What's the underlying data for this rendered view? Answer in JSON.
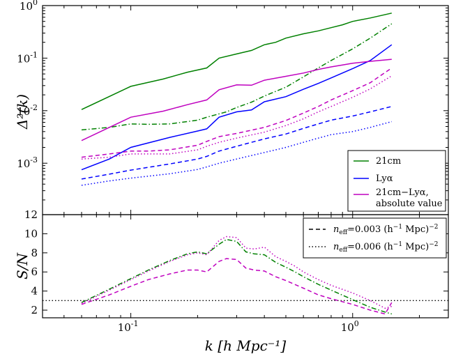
{
  "chart_data": [
    {
      "type": "line",
      "panel": "top",
      "xscale": "log",
      "yscale": "log",
      "xlim": [
        0.04,
        2.7
      ],
      "ylim": [
        0.000105,
        1.0
      ],
      "ylabel": "Δ²(k)",
      "yticks": [
        {
          "value": 1.0,
          "base": "10",
          "exp": "0"
        },
        {
          "value": 0.1,
          "base": "10",
          "exp": "-1"
        },
        {
          "value": 0.01,
          "base": "10",
          "exp": "-2"
        },
        {
          "value": 0.001,
          "base": "10",
          "exp": "-3"
        }
      ],
      "legend": {
        "location": "lower right",
        "entries": [
          {
            "label": "21cm",
            "color": "#008000"
          },
          {
            "label": "Lyα",
            "color": "#0000ff"
          },
          {
            "label": "21cm−Lyα,",
            "label2": "absolute value",
            "color": "#bf00bf"
          }
        ]
      },
      "series": [
        {
          "quantity": "21cm",
          "style": "solid",
          "color": "#008000",
          "x": [
            0.06,
            0.1,
            0.14,
            0.18,
            0.22,
            0.25,
            0.3,
            0.35,
            0.4,
            0.45,
            0.5,
            0.6,
            0.7,
            0.8,
            0.9,
            1.0,
            1.2,
            1.5
          ],
          "y": [
            0.0105,
            0.029,
            0.04,
            0.054,
            0.065,
            0.1,
            0.12,
            0.14,
            0.18,
            0.2,
            0.24,
            0.29,
            0.33,
            0.38,
            0.43,
            0.5,
            0.58,
            0.72
          ]
        },
        {
          "quantity": "21cm",
          "style": "dashdot",
          "color": "#008000",
          "x": [
            0.06,
            0.08,
            0.1,
            0.12,
            0.15,
            0.2,
            0.22,
            0.27,
            0.3,
            0.35,
            0.4,
            0.5,
            0.6,
            0.7,
            0.8,
            1.0,
            1.2,
            1.5
          ],
          "y": [
            0.0043,
            0.0048,
            0.0056,
            0.0055,
            0.0056,
            0.0066,
            0.0075,
            0.0095,
            0.0115,
            0.0145,
            0.019,
            0.028,
            0.044,
            0.065,
            0.09,
            0.15,
            0.24,
            0.45
          ]
        },
        {
          "quantity": "Lyα",
          "style": "solid",
          "color": "#0000ff",
          "x": [
            0.06,
            0.08,
            0.1,
            0.15,
            0.2,
            0.22,
            0.25,
            0.3,
            0.35,
            0.4,
            0.5,
            0.6,
            0.7,
            0.8,
            1.0,
            1.2,
            1.5
          ],
          "y": [
            0.00075,
            0.0012,
            0.002,
            0.0031,
            0.0041,
            0.0045,
            0.0075,
            0.0095,
            0.0103,
            0.0148,
            0.0185,
            0.0255,
            0.033,
            0.042,
            0.063,
            0.09,
            0.18
          ]
        },
        {
          "quantity": "Lyα",
          "style": "dashed",
          "color": "#0000ff",
          "x": [
            0.06,
            0.08,
            0.1,
            0.15,
            0.2,
            0.22,
            0.25,
            0.3,
            0.4,
            0.5,
            0.6,
            0.7,
            0.8,
            1.0,
            1.2,
            1.5
          ],
          "y": [
            0.0005,
            0.00062,
            0.00074,
            0.00097,
            0.0012,
            0.00135,
            0.0017,
            0.0021,
            0.0029,
            0.0036,
            0.0046,
            0.0056,
            0.0066,
            0.0079,
            0.0095,
            0.012
          ]
        },
        {
          "quantity": "Lyα",
          "style": "dotted",
          "color": "#0000ff",
          "x": [
            0.06,
            0.08,
            0.1,
            0.15,
            0.2,
            0.22,
            0.25,
            0.3,
            0.4,
            0.5,
            0.6,
            0.7,
            0.8,
            1.0,
            1.2,
            1.5
          ],
          "y": [
            0.00038,
            0.00046,
            0.00052,
            0.00063,
            0.00076,
            0.00085,
            0.001,
            0.0012,
            0.0016,
            0.002,
            0.0025,
            0.003,
            0.0035,
            0.004,
            0.0048,
            0.0062
          ]
        },
        {
          "quantity": "21cm−Lyα",
          "style": "solid",
          "color": "#bf00bf",
          "x": [
            0.06,
            0.08,
            0.1,
            0.14,
            0.18,
            0.22,
            0.25,
            0.3,
            0.35,
            0.4,
            0.5,
            0.6,
            0.7,
            0.8,
            0.9,
            1.0,
            1.2,
            1.5
          ],
          "y": [
            0.0027,
            0.0048,
            0.0075,
            0.0098,
            0.013,
            0.016,
            0.025,
            0.031,
            0.0305,
            0.038,
            0.045,
            0.052,
            0.061,
            0.068,
            0.074,
            0.08,
            0.087,
            0.095
          ]
        },
        {
          "quantity": "21cm−Lyα",
          "style": "dashed",
          "color": "#bf00bf",
          "x": [
            0.06,
            0.08,
            0.1,
            0.12,
            0.15,
            0.2,
            0.22,
            0.25,
            0.3,
            0.4,
            0.5,
            0.6,
            0.7,
            0.8,
            1.0,
            1.2,
            1.5
          ],
          "y": [
            0.0013,
            0.0015,
            0.0017,
            0.0017,
            0.0018,
            0.0022,
            0.0026,
            0.0032,
            0.0037,
            0.0048,
            0.0065,
            0.009,
            0.012,
            0.016,
            0.024,
            0.034,
            0.065
          ]
        },
        {
          "quantity": "21cm−Lyα",
          "style": "dotted",
          "color": "#bf00bf",
          "x": [
            0.06,
            0.08,
            0.1,
            0.12,
            0.15,
            0.2,
            0.22,
            0.25,
            0.3,
            0.4,
            0.5,
            0.6,
            0.7,
            0.8,
            1.0,
            1.2,
            1.5
          ],
          "y": [
            0.0012,
            0.0013,
            0.0015,
            0.0015,
            0.0015,
            0.0018,
            0.0021,
            0.0025,
            0.003,
            0.0039,
            0.0052,
            0.007,
            0.0095,
            0.012,
            0.018,
            0.026,
            0.046
          ]
        }
      ]
    },
    {
      "type": "line",
      "panel": "bottom",
      "xscale": "log",
      "yscale": "linear",
      "xlim": [
        0.04,
        2.7
      ],
      "ylim": [
        1.2,
        12
      ],
      "xlabel": "k [h Mpc⁻¹]",
      "ylabel": "S/N",
      "yticks": [
        2,
        4,
        6,
        8,
        10,
        12
      ],
      "xticks": [
        {
          "value": 0.1,
          "base": "10",
          "exp": "-1"
        },
        {
          "value": 1.0,
          "base": "10",
          "exp": "0"
        }
      ],
      "reference_line": {
        "y": 3,
        "style": "dotted",
        "color": "#000000"
      },
      "legend": {
        "location": "upper right",
        "entries": [
          {
            "style": "dashed",
            "label_prefix": "n",
            "label_sub": "eff",
            "label_value": "=0.003 (h",
            "label_exp1": "−1",
            "label_mid": " Mpc)",
            "label_exp2": "−2"
          },
          {
            "style": "dotted",
            "label_prefix": "n",
            "label_sub": "eff",
            "label_value": "=0.006 (h",
            "label_exp1": "−1",
            "label_mid": " Mpc)",
            "label_exp2": "−2"
          }
        ]
      },
      "series": [
        {
          "quantity": "21cm",
          "style": "dashdot",
          "color": "#008000",
          "x": [
            0.06,
            0.08,
            0.1,
            0.12,
            0.15,
            0.18,
            0.2,
            0.22,
            0.25,
            0.27,
            0.3,
            0.33,
            0.36,
            0.4,
            0.45,
            0.5,
            0.55,
            0.6,
            0.7,
            0.8,
            1.0,
            1.2,
            1.4,
            1.5
          ],
          "y": [
            2.8,
            4.2,
            5.3,
            6.2,
            7.2,
            7.9,
            8.1,
            7.9,
            8.9,
            9.4,
            9.2,
            8.1,
            7.9,
            7.8,
            7.0,
            6.5,
            6.0,
            5.5,
            4.7,
            4.1,
            3.1,
            2.3,
            1.8,
            1.6
          ]
        },
        {
          "quantity": "21cm",
          "style": "dotted",
          "color": "#bf00bf",
          "x": [
            0.06,
            0.08,
            0.1,
            0.12,
            0.15,
            0.18,
            0.2,
            0.22,
            0.25,
            0.27,
            0.3,
            0.33,
            0.36,
            0.4,
            0.45,
            0.5,
            0.55,
            0.6,
            0.7,
            0.8,
            1.0,
            1.2,
            1.4,
            1.5
          ],
          "y": [
            2.7,
            4.1,
            5.2,
            6.1,
            7.1,
            7.8,
            8.0,
            7.8,
            9.3,
            9.7,
            9.6,
            8.5,
            8.4,
            8.6,
            7.6,
            7.1,
            6.6,
            6.0,
            5.2,
            4.6,
            3.8,
            3.0,
            2.2,
            2.4
          ]
        },
        {
          "quantity": "21cm−Lyα",
          "style": "dashed",
          "color": "#bf00bf",
          "x": [
            0.06,
            0.08,
            0.1,
            0.12,
            0.15,
            0.18,
            0.2,
            0.22,
            0.25,
            0.27,
            0.3,
            0.33,
            0.36,
            0.4,
            0.45,
            0.5,
            0.6,
            0.7,
            0.8,
            1.0,
            1.2,
            1.4,
            1.5
          ],
          "y": [
            2.6,
            3.6,
            4.5,
            5.2,
            5.8,
            6.2,
            6.2,
            6.0,
            7.1,
            7.4,
            7.3,
            6.4,
            6.2,
            6.1,
            5.5,
            5.1,
            4.3,
            3.6,
            3.2,
            2.6,
            2.0,
            1.6,
            2.8
          ]
        }
      ]
    }
  ]
}
